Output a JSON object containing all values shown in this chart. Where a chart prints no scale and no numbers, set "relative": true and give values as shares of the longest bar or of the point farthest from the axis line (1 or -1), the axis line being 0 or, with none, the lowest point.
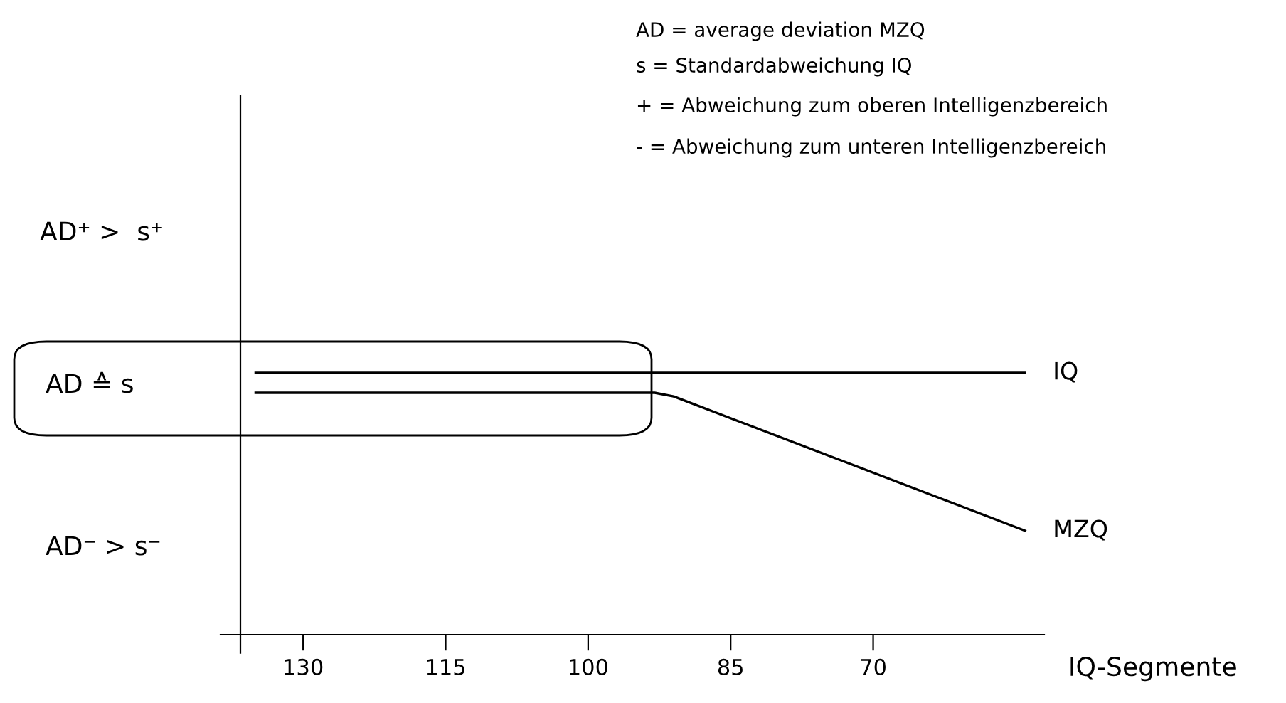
{
  "chart_data": {
    "type": "line",
    "relative": true,
    "xlim": [
      136.6,
      52
    ],
    "xticks": [
      130,
      115,
      100,
      85,
      70
    ],
    "xlabel": "IQ-Segmente",
    "series": [
      {
        "name": "IQ",
        "color": "#000000",
        "x": [
          135,
          93,
          54
        ],
        "values": [
          1,
          1,
          1
        ]
      },
      {
        "name": "MZQ",
        "color": "#000000",
        "x": [
          135,
          93,
          91,
          54
        ],
        "values": [
          0.924,
          0.924,
          0.91,
          0.397
        ]
      }
    ],
    "annotations": [
      "AD = average deviation MZQ",
      "s = Standardabweichung IQ",
      "+ = Abweichung zum oberen Intelligenzbereich",
      "- = Abweichung zum unteren Intelligenzbereich",
      "AD⁺ >  s⁺",
      "AD ≙ s",
      "AD⁻ > s⁻"
    ],
    "grid": false,
    "legend": false,
    "marker": "none",
    "line_style": "solid"
  }
}
